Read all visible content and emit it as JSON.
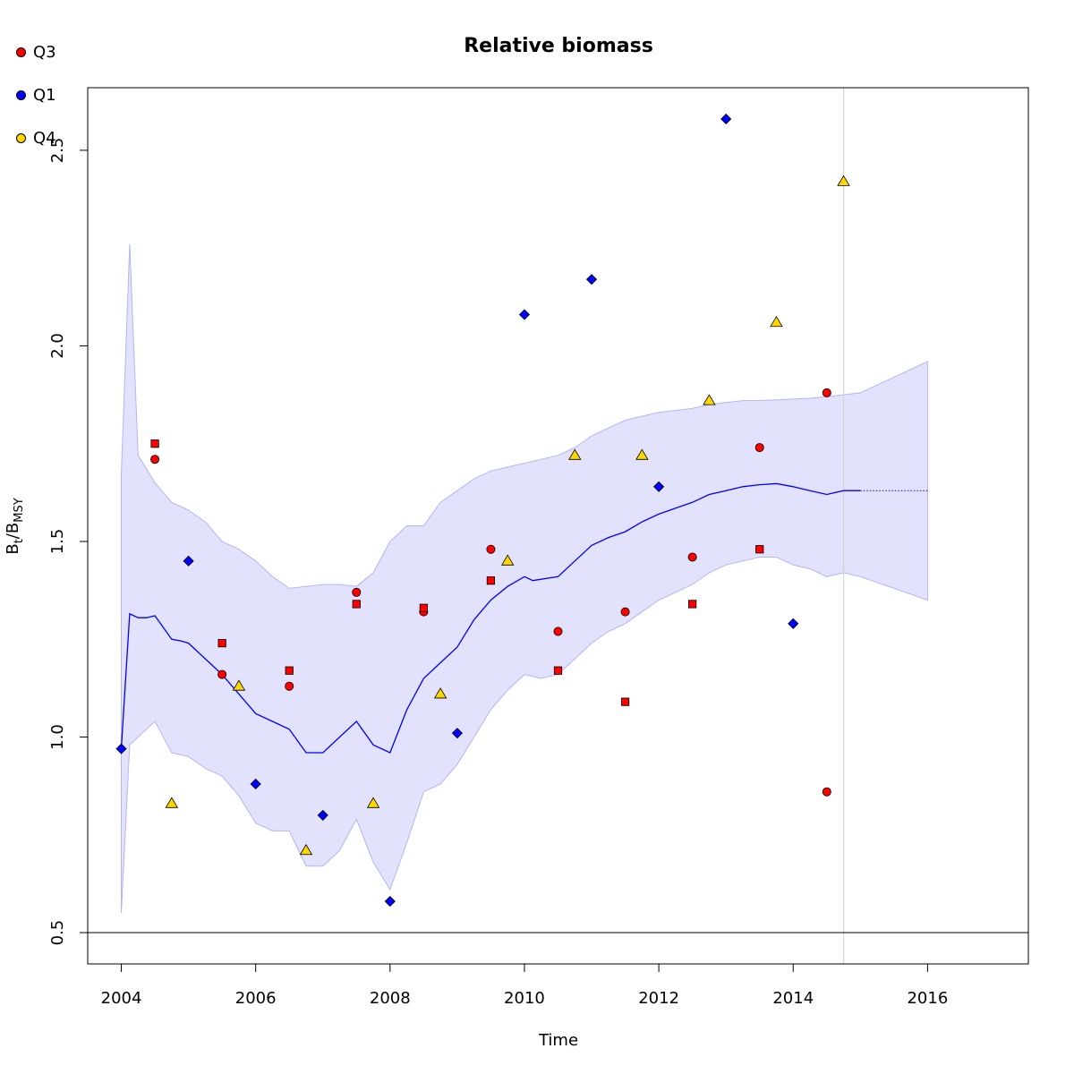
{
  "chart_data": {
    "type": "scatter",
    "title": "Relative biomass",
    "xlabel": "Time",
    "ylabel_main": "B",
    "ylabel_sub1": "t",
    "ylabel_sep": "/B",
    "ylabel_sub2": "MSY",
    "xlim": [
      2003.5,
      2017.5
    ],
    "ylim": [
      0.42,
      2.66
    ],
    "x_ticks": [
      2004,
      2006,
      2008,
      2010,
      2012,
      2014,
      2016
    ],
    "y_ticks": [
      0.5,
      1.0,
      1.5,
      2.0,
      2.5
    ],
    "grid": false,
    "legend_position": "top-left",
    "legend": [
      {
        "name": "Q3",
        "color": "#ff0000"
      },
      {
        "name": "Q1",
        "color": "#0000ff"
      },
      {
        "name": "Q4",
        "color": "#ffd700"
      }
    ],
    "reference_line_y": 0.5,
    "vertical_line_x": 2014.75,
    "estimate_line": {
      "color": "#0000ff",
      "x": [
        2004.0,
        2004.125,
        2004.25,
        2004.375,
        2004.5,
        2004.75,
        2004.9,
        2005.0,
        2005.25,
        2005.5,
        2005.75,
        2006.0,
        2006.25,
        2006.5,
        2006.75,
        2007.0,
        2007.25,
        2007.5,
        2007.75,
        2008.0,
        2008.25,
        2008.5,
        2008.75,
        2009.0,
        2009.25,
        2009.5,
        2009.75,
        2010.0,
        2010.125,
        2010.5,
        2010.75,
        2011.0,
        2011.25,
        2011.5,
        2011.75,
        2012.0,
        2012.25,
        2012.5,
        2012.75,
        2013.0,
        2013.25,
        2013.5,
        2013.75,
        2014.0,
        2014.25,
        2014.5,
        2014.75,
        2015.0
      ],
      "y": [
        0.97,
        1.315,
        1.305,
        1.305,
        1.31,
        1.25,
        1.245,
        1.24,
        1.2,
        1.16,
        1.11,
        1.06,
        1.04,
        1.02,
        0.96,
        0.96,
        1.0,
        1.04,
        0.98,
        0.96,
        1.07,
        1.15,
        1.19,
        1.23,
        1.3,
        1.35,
        1.385,
        1.41,
        1.4,
        1.41,
        1.45,
        1.49,
        1.51,
        1.525,
        1.55,
        1.57,
        1.585,
        1.6,
        1.62,
        1.63,
        1.64,
        1.645,
        1.648,
        1.64,
        1.63,
        1.62,
        1.63,
        1.63
      ],
      "forecast_x": [
        2015.0,
        2016.0
      ],
      "forecast_y": [
        1.63,
        1.63
      ]
    },
    "confidence_band": {
      "color": "#e2e2fd",
      "x": [
        2004.0,
        2004.125,
        2004.25,
        2004.5,
        2004.75,
        2005.0,
        2005.25,
        2005.5,
        2005.75,
        2006.0,
        2006.25,
        2006.5,
        2006.75,
        2007.0,
        2007.25,
        2007.5,
        2007.75,
        2008.0,
        2008.25,
        2008.5,
        2008.75,
        2009.0,
        2009.25,
        2009.5,
        2009.75,
        2010.0,
        2010.25,
        2010.5,
        2010.75,
        2011.0,
        2011.25,
        2011.5,
        2011.75,
        2012.0,
        2012.25,
        2012.5,
        2012.75,
        2013.0,
        2013.25,
        2013.5,
        2013.75,
        2014.0,
        2014.25,
        2014.5,
        2014.75,
        2015.0,
        2015.5,
        2016.0
      ],
      "upper": [
        1.67,
        2.26,
        1.72,
        1.65,
        1.6,
        1.58,
        1.55,
        1.5,
        1.48,
        1.45,
        1.41,
        1.38,
        1.385,
        1.39,
        1.39,
        1.385,
        1.42,
        1.5,
        1.54,
        1.54,
        1.6,
        1.63,
        1.66,
        1.68,
        1.69,
        1.7,
        1.71,
        1.72,
        1.74,
        1.77,
        1.79,
        1.81,
        1.82,
        1.83,
        1.835,
        1.84,
        1.85,
        1.855,
        1.86,
        1.86,
        1.862,
        1.864,
        1.866,
        1.87,
        1.875,
        1.88,
        1.92,
        1.96
      ],
      "lower": [
        0.55,
        0.98,
        1.0,
        1.04,
        0.96,
        0.95,
        0.92,
        0.9,
        0.85,
        0.78,
        0.76,
        0.76,
        0.67,
        0.67,
        0.71,
        0.79,
        0.68,
        0.61,
        0.73,
        0.86,
        0.88,
        0.93,
        1.0,
        1.07,
        1.12,
        1.16,
        1.15,
        1.16,
        1.2,
        1.24,
        1.27,
        1.29,
        1.32,
        1.35,
        1.37,
        1.39,
        1.42,
        1.44,
        1.45,
        1.46,
        1.46,
        1.44,
        1.43,
        1.41,
        1.42,
        1.41,
        1.38,
        1.35
      ]
    },
    "series": [
      {
        "name": "Q3",
        "color": "#ff0000",
        "marker": "circle",
        "points": [
          [
            2004.5,
            1.71
          ],
          [
            2005.5,
            1.16
          ],
          [
            2006.5,
            1.13
          ],
          [
            2007.5,
            1.37
          ],
          [
            2008.5,
            1.32
          ],
          [
            2009.5,
            1.48
          ],
          [
            2010.5,
            1.27
          ],
          [
            2011.5,
            1.32
          ],
          [
            2012.5,
            1.46
          ],
          [
            2013.5,
            1.74
          ],
          [
            2014.5,
            1.88
          ],
          [
            2014.5,
            0.86
          ]
        ]
      },
      {
        "name": "",
        "color": "#ff0000",
        "marker": "square",
        "points": [
          [
            2004.5,
            1.75
          ],
          [
            2005.5,
            1.24
          ],
          [
            2006.5,
            1.17
          ],
          [
            2007.5,
            1.34
          ],
          [
            2008.5,
            1.33
          ],
          [
            2009.5,
            1.4
          ],
          [
            2010.5,
            1.17
          ],
          [
            2011.5,
            1.09
          ],
          [
            2012.5,
            1.34
          ],
          [
            2013.5,
            1.48
          ]
        ]
      },
      {
        "name": "Q1",
        "color": "#0000ff",
        "marker": "diamond",
        "points": [
          [
            2004.0,
            0.97
          ],
          [
            2005.0,
            1.45
          ],
          [
            2006.0,
            0.88
          ],
          [
            2007.0,
            0.8
          ],
          [
            2008.0,
            0.58
          ],
          [
            2009.0,
            1.01
          ],
          [
            2010.0,
            2.08
          ],
          [
            2011.0,
            2.17
          ],
          [
            2012.0,
            1.64
          ],
          [
            2013.0,
            2.58
          ],
          [
            2014.0,
            1.29
          ]
        ]
      },
      {
        "name": "Q4",
        "color": "#ffd700",
        "marker": "triangle",
        "points": [
          [
            2004.75,
            0.83
          ],
          [
            2005.75,
            1.13
          ],
          [
            2006.75,
            0.71
          ],
          [
            2007.75,
            0.83
          ],
          [
            2008.75,
            1.11
          ],
          [
            2009.75,
            1.45
          ],
          [
            2010.75,
            1.72
          ],
          [
            2011.75,
            1.72
          ],
          [
            2012.75,
            1.86
          ],
          [
            2013.75,
            2.06
          ],
          [
            2014.75,
            2.42
          ]
        ]
      }
    ]
  }
}
